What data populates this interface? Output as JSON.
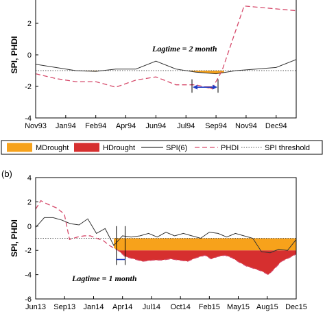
{
  "colors": {
    "mdrought": "#f7a21b",
    "hdrought": "#d62f2f",
    "spi": "#333333",
    "phdi": "#d64a6b",
    "threshold": "#555555",
    "arrow": "#1f3cc4"
  },
  "legend": {
    "mdrought": "MDrought",
    "hdrought": "HDrought",
    "spi": "SPI(6)",
    "phdi": "PHDI",
    "threshold": "SPI threshold"
  },
  "chart_data": [
    {
      "type": "area",
      "panel_label": "",
      "ylabel": "SPI, PHDI",
      "ylim": [
        -4,
        4
      ],
      "yticks": [
        "-4",
        "-2",
        "0",
        "2"
      ],
      "xlim": [
        0,
        13
      ],
      "xtick_labels": [
        "Nov93",
        "Jan94",
        "Feb94",
        "Apr94",
        "Jun94",
        "Jul94",
        "Sep94",
        "Nov94",
        "Dec94"
      ],
      "xtick_positions": [
        0,
        1.5,
        3,
        4.5,
        6,
        7.5,
        9,
        10.5,
        12
      ],
      "annotation": "Lagtime = 2 month",
      "threshold": -1,
      "hdrought_level": -2,
      "spi": {
        "x": [
          0,
          1,
          2,
          3,
          4,
          5,
          6,
          7,
          8,
          9,
          10,
          11,
          12,
          13
        ],
        "y": [
          -0.6,
          -0.8,
          -1.0,
          -1.05,
          -0.9,
          -0.9,
          -0.4,
          -0.9,
          -1.1,
          -1.2,
          -1.0,
          -0.9,
          -0.8,
          -0.3
        ]
      },
      "phdi": {
        "x": [
          0,
          1,
          2,
          3,
          4,
          5,
          6,
          7,
          8,
          8.8,
          9.3,
          10.4,
          13
        ],
        "y": [
          -1.2,
          -1.5,
          -1.7,
          -1.7,
          -2.05,
          -1.6,
          -1.4,
          -1.9,
          -1.9,
          -2.15,
          -1.0,
          3.1,
          2.8
        ]
      },
      "lag_bounds_x": [
        7.8,
        9.1
      ]
    },
    {
      "type": "area",
      "panel_label": "(b)",
      "ylabel": "SPI, PHDI",
      "ylim": [
        -6,
        4
      ],
      "yticks": [
        "-6",
        "-4",
        "-2",
        "0",
        "2",
        "4"
      ],
      "xlim": [
        0,
        30
      ],
      "xtick_labels": [
        "Jun13",
        "Sep13",
        "Jan14",
        "Apr14",
        "Jul14",
        "Oct14",
        "Feb15",
        "May15",
        "Aug15",
        "Dec15"
      ],
      "xtick_positions": [
        0,
        3.33,
        6.67,
        10,
        13.33,
        16.67,
        20,
        23.33,
        26.67,
        30
      ],
      "annotation": "Lagtime = 1 month",
      "threshold": -1,
      "hdrought_level": -2,
      "spi": {
        "x": [
          0,
          1,
          2,
          3,
          4,
          5,
          6,
          7,
          8,
          9,
          10,
          11,
          12,
          13,
          14,
          15,
          16,
          17,
          18,
          19,
          20,
          21,
          22,
          23,
          24,
          25,
          26,
          27,
          28,
          29,
          30
        ],
        "y": [
          -0.1,
          0.7,
          0.7,
          0.5,
          0.2,
          0.1,
          0.6,
          -0.6,
          -0.2,
          -1.6,
          -0.8,
          -0.9,
          -0.8,
          -0.6,
          -0.9,
          -0.5,
          -0.8,
          -0.6,
          -0.8,
          -1.0,
          -0.5,
          -0.6,
          -0.9,
          -0.6,
          -0.8,
          -1.0,
          -2.1,
          -2.2,
          -1.9,
          -2.0,
          -1.1
        ]
      },
      "phdi": {
        "x": [
          0,
          0.6,
          1.1,
          2.4,
          3.3,
          3.9,
          4.8,
          5.6,
          6.3,
          7.0,
          7.8,
          8.5,
          9.5,
          10.3,
          11.3,
          12.3,
          13.5,
          14.5,
          15.5,
          16.5,
          17.5,
          18.5,
          19.5,
          20.2,
          21.0,
          21.8,
          22.6,
          23.5,
          24.3,
          25.2,
          26.0,
          26.8,
          27.5,
          28.3,
          29.2,
          30
        ],
        "y": [
          1.4,
          2.1,
          1.9,
          1.5,
          1.0,
          -1.1,
          -0.9,
          -0.8,
          -0.8,
          -1.0,
          -1.2,
          -1.6,
          -2.0,
          -2.5,
          -2.7,
          -2.9,
          -2.8,
          -2.8,
          -2.7,
          -2.8,
          -2.9,
          -2.6,
          -2.4,
          -2.7,
          -2.5,
          -2.4,
          -2.6,
          -3.0,
          -3.3,
          -3.5,
          -3.7,
          -4.0,
          -3.5,
          -2.9,
          -2.6,
          -2.3
        ]
      },
      "mdrought_start_x": 9,
      "lag_bounds_x": [
        9.3,
        10.3
      ]
    }
  ]
}
